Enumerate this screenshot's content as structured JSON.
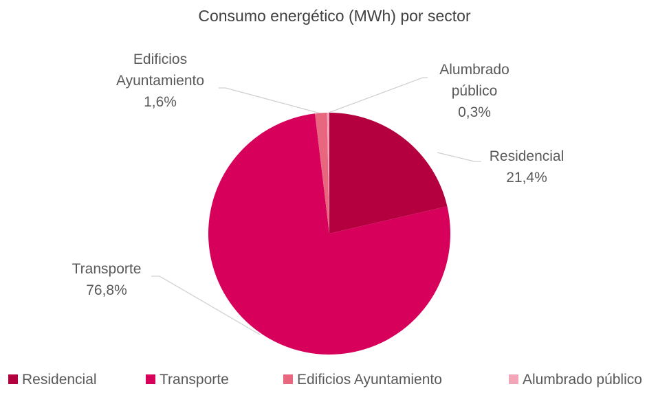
{
  "chart_data": {
    "type": "pie",
    "title": "Consumo energético (MWh) por sector",
    "categories": [
      "Residencial",
      "Transporte",
      "Edificios Ayuntamiento",
      "Alumbrado público"
    ],
    "values": [
      21.4,
      76.8,
      1.6,
      0.3
    ],
    "value_labels": [
      "21,4%",
      "76,8%",
      "1,6%",
      "0,3%"
    ],
    "colors": [
      "#b5003f",
      "#d7005a",
      "#e8677f",
      "#f2a6b8"
    ],
    "legend": "bottom"
  }
}
